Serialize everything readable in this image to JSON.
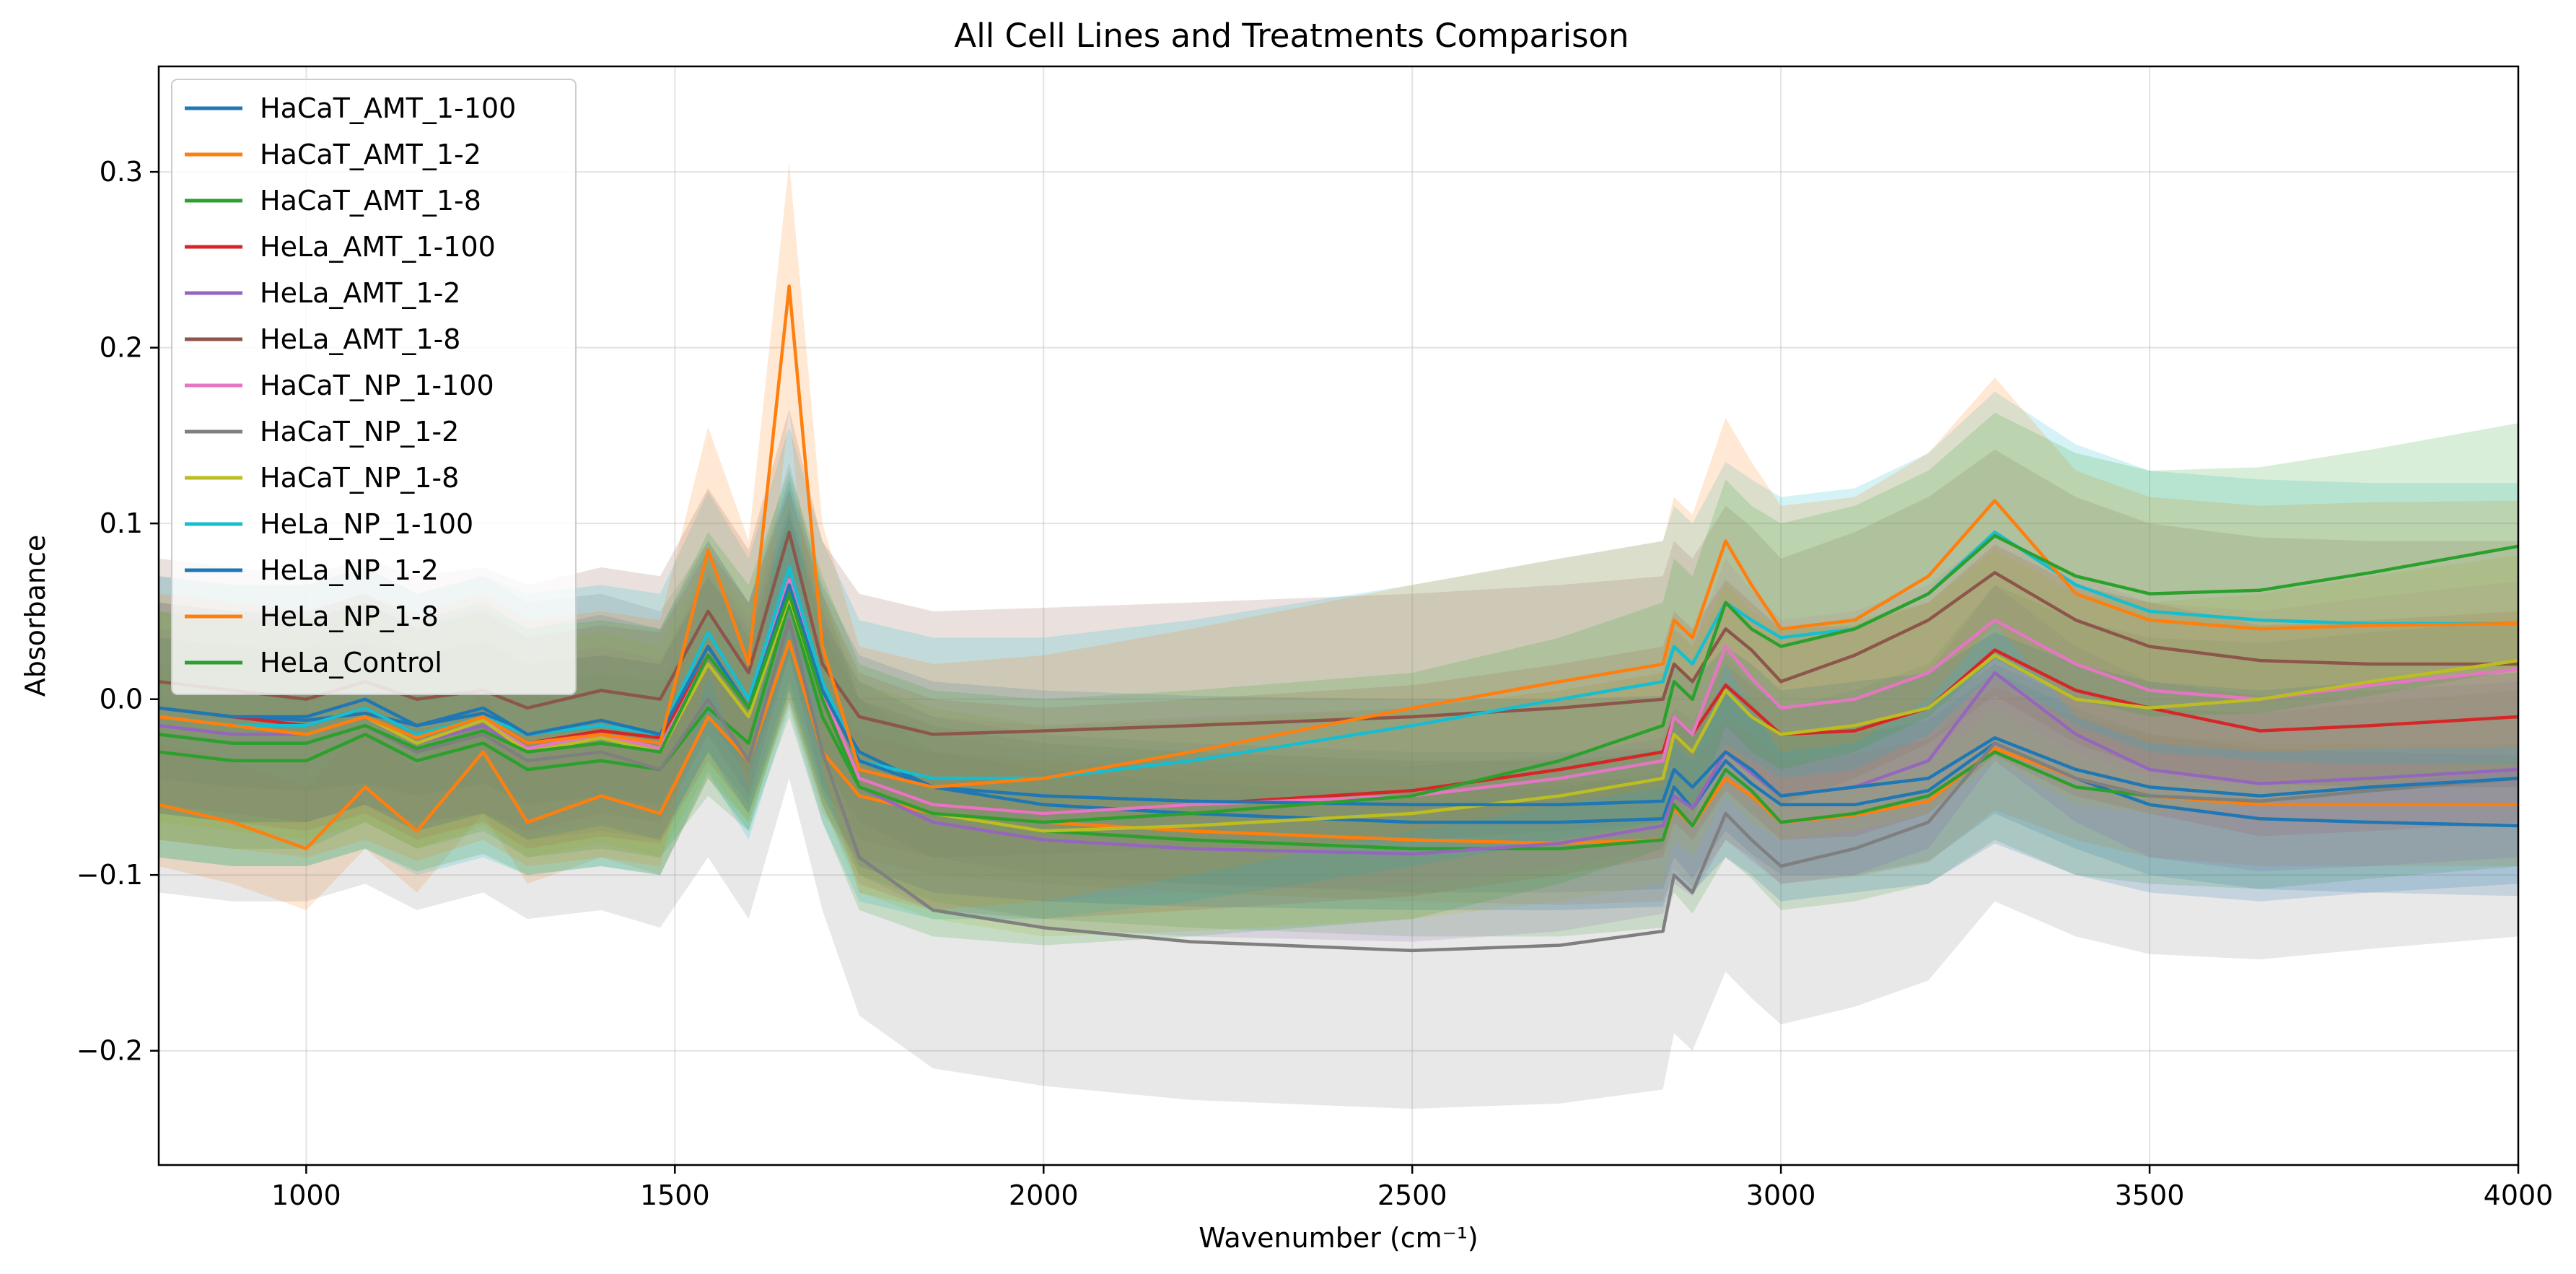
{
  "chart_data": {
    "type": "line",
    "title": "All Cell Lines and Treatments Comparison",
    "xlabel": "Wavenumber (cm⁻¹)",
    "ylabel": "Absorbance",
    "xlim": [
      800,
      4000
    ],
    "ylim": [
      -0.265,
      0.36
    ],
    "xticks": [
      1000,
      1500,
      2000,
      2500,
      3000,
      3500,
      4000
    ],
    "yticks": [
      -0.2,
      -0.1,
      0.0,
      0.1,
      0.2,
      0.3
    ],
    "ytick_labels": [
      "−0.2",
      "−0.1",
      "0.0",
      "0.1",
      "0.2",
      "0.3"
    ],
    "grid": true,
    "legend_position": "top-left",
    "bands": "shaded ±spread around each series",
    "x": [
      800,
      900,
      1000,
      1080,
      1150,
      1240,
      1300,
      1400,
      1480,
      1545,
      1600,
      1655,
      1700,
      1750,
      1850,
      2000,
      2200,
      2500,
      2700,
      2840,
      2855,
      2880,
      2925,
      2960,
      3000,
      3100,
      3200,
      3290,
      3400,
      3500,
      3650,
      3800,
      4000
    ],
    "series": [
      {
        "name": "HaCaT_AMT_1-100",
        "color": "#1f77b4",
        "band": 0.04,
        "values": [
          -0.005,
          -0.01,
          -0.012,
          -0.008,
          -0.015,
          -0.008,
          -0.02,
          -0.015,
          -0.02,
          0.03,
          -0.005,
          0.065,
          0.005,
          -0.03,
          -0.05,
          -0.06,
          -0.065,
          -0.07,
          -0.07,
          -0.068,
          -0.05,
          -0.062,
          -0.035,
          -0.048,
          -0.06,
          -0.06,
          -0.052,
          -0.025,
          -0.045,
          -0.06,
          -0.068,
          -0.07,
          -0.072
        ]
      },
      {
        "name": "HaCaT_AMT_1-2",
        "color": "#ff7f0e",
        "band": 0.035,
        "values": [
          -0.06,
          -0.07,
          -0.085,
          -0.05,
          -0.075,
          -0.03,
          -0.07,
          -0.055,
          -0.065,
          -0.01,
          -0.035,
          0.033,
          -0.03,
          -0.055,
          -0.065,
          -0.07,
          -0.075,
          -0.08,
          -0.082,
          -0.08,
          -0.062,
          -0.072,
          -0.045,
          -0.055,
          -0.07,
          -0.066,
          -0.058,
          -0.028,
          -0.045,
          -0.055,
          -0.06,
          -0.06,
          -0.06
        ]
      },
      {
        "name": "HaCaT_AMT_1-8",
        "color": "#2ca02c",
        "band": 0.05,
        "values": [
          -0.03,
          -0.035,
          -0.035,
          -0.02,
          -0.035,
          -0.025,
          -0.04,
          -0.035,
          -0.04,
          -0.005,
          -0.025,
          0.055,
          -0.01,
          -0.05,
          -0.065,
          -0.075,
          -0.08,
          -0.085,
          -0.085,
          -0.08,
          -0.06,
          -0.072,
          -0.04,
          -0.052,
          -0.07,
          -0.065,
          -0.055,
          -0.03,
          -0.05,
          -0.055,
          -0.058,
          -0.052,
          -0.045
        ]
      },
      {
        "name": "HeLa_AMT_1-100",
        "color": "#d62728",
        "band": 0.06,
        "values": [
          -0.005,
          -0.01,
          -0.015,
          -0.005,
          -0.02,
          -0.01,
          -0.025,
          -0.018,
          -0.022,
          0.025,
          -0.005,
          0.06,
          0.0,
          -0.045,
          -0.06,
          -0.065,
          -0.06,
          -0.052,
          -0.04,
          -0.03,
          -0.01,
          -0.02,
          0.008,
          -0.005,
          -0.02,
          -0.018,
          -0.005,
          0.028,
          0.005,
          -0.005,
          -0.018,
          -0.015,
          -0.01
        ]
      },
      {
        "name": "HeLa_AMT_1-2",
        "color": "#9467bd",
        "band": 0.05,
        "values": [
          -0.015,
          -0.02,
          -0.02,
          -0.01,
          -0.025,
          -0.015,
          -0.03,
          -0.025,
          -0.03,
          0.02,
          -0.01,
          0.06,
          0.0,
          -0.05,
          -0.07,
          -0.08,
          -0.085,
          -0.088,
          -0.082,
          -0.072,
          -0.055,
          -0.062,
          -0.03,
          -0.042,
          -0.055,
          -0.05,
          -0.035,
          0.015,
          -0.02,
          -0.04,
          -0.048,
          -0.045,
          -0.04
        ]
      },
      {
        "name": "HeLa_AMT_1-8",
        "color": "#8c564b",
        "band": 0.07,
        "values": [
          0.01,
          0.005,
          0.0,
          0.01,
          0.0,
          0.005,
          -0.005,
          0.005,
          0.0,
          0.05,
          0.015,
          0.095,
          0.02,
          -0.01,
          -0.02,
          -0.018,
          -0.015,
          -0.01,
          -0.005,
          0.0,
          0.02,
          0.01,
          0.04,
          0.028,
          0.01,
          0.025,
          0.045,
          0.072,
          0.045,
          0.03,
          0.022,
          0.02,
          0.02
        ]
      },
      {
        "name": "HaCaT_NP_1-100",
        "color": "#e377c2",
        "band": 0.05,
        "values": [
          -0.01,
          -0.015,
          -0.02,
          -0.01,
          -0.025,
          -0.012,
          -0.028,
          -0.02,
          -0.028,
          0.025,
          -0.005,
          0.068,
          0.005,
          -0.045,
          -0.06,
          -0.065,
          -0.06,
          -0.055,
          -0.045,
          -0.035,
          -0.01,
          -0.02,
          0.03,
          0.012,
          -0.005,
          0.0,
          0.015,
          0.045,
          0.02,
          0.005,
          0.0,
          0.008,
          0.017
        ]
      },
      {
        "name": "HaCaT_NP_1-2",
        "color": "#7f7f7f",
        "band": 0.09,
        "values": [
          -0.02,
          -0.025,
          -0.025,
          -0.015,
          -0.03,
          -0.02,
          -0.035,
          -0.03,
          -0.04,
          0.0,
          -0.035,
          0.045,
          -0.03,
          -0.09,
          -0.12,
          -0.13,
          -0.138,
          -0.143,
          -0.14,
          -0.132,
          -0.1,
          -0.11,
          -0.065,
          -0.08,
          -0.095,
          -0.085,
          -0.07,
          -0.025,
          -0.045,
          -0.055,
          -0.058,
          -0.052,
          -0.045
        ]
      },
      {
        "name": "HaCaT_NP_1-8",
        "color": "#bcbd22",
        "band": 0.06,
        "values": [
          -0.01,
          -0.015,
          -0.02,
          -0.01,
          -0.025,
          -0.012,
          -0.03,
          -0.022,
          -0.03,
          0.02,
          -0.01,
          0.058,
          0.0,
          -0.05,
          -0.065,
          -0.075,
          -0.072,
          -0.065,
          -0.055,
          -0.045,
          -0.02,
          -0.03,
          0.005,
          -0.01,
          -0.02,
          -0.015,
          -0.005,
          0.025,
          0.0,
          -0.005,
          0.0,
          0.01,
          0.022
        ]
      },
      {
        "name": "HeLa_NP_1-100",
        "color": "#17becf",
        "band": 0.08,
        "values": [
          -0.01,
          -0.015,
          -0.015,
          -0.005,
          -0.02,
          -0.01,
          -0.02,
          -0.015,
          -0.02,
          0.038,
          0.0,
          0.075,
          0.01,
          -0.035,
          -0.045,
          -0.045,
          -0.035,
          -0.015,
          0.0,
          0.01,
          0.03,
          0.02,
          0.055,
          0.045,
          0.035,
          0.04,
          0.06,
          0.095,
          0.065,
          0.05,
          0.045,
          0.043,
          0.043
        ]
      },
      {
        "name": "HeLa_NP_1-2",
        "color": "#1f77b4",
        "band": 0.06,
        "values": [
          -0.005,
          -0.01,
          -0.01,
          0.0,
          -0.015,
          -0.005,
          -0.02,
          -0.012,
          -0.02,
          0.03,
          -0.005,
          0.065,
          0.005,
          -0.035,
          -0.05,
          -0.055,
          -0.058,
          -0.06,
          -0.06,
          -0.058,
          -0.04,
          -0.05,
          -0.03,
          -0.04,
          -0.055,
          -0.05,
          -0.045,
          -0.022,
          -0.04,
          -0.05,
          -0.055,
          -0.05,
          -0.045
        ]
      },
      {
        "name": "HeLa_NP_1-8",
        "color": "#ff7f0e",
        "band": 0.07,
        "values": [
          -0.01,
          -0.015,
          -0.02,
          -0.01,
          -0.022,
          -0.01,
          -0.025,
          -0.02,
          -0.025,
          0.085,
          0.02,
          0.235,
          0.03,
          -0.04,
          -0.05,
          -0.045,
          -0.03,
          -0.005,
          0.01,
          0.02,
          0.045,
          0.035,
          0.09,
          0.065,
          0.04,
          0.045,
          0.07,
          0.113,
          0.06,
          0.045,
          0.04,
          0.042,
          0.043
        ]
      },
      {
        "name": "HeLa_Control",
        "color": "#2ca02c",
        "band": 0.07,
        "values": [
          -0.02,
          -0.025,
          -0.025,
          -0.015,
          -0.028,
          -0.018,
          -0.03,
          -0.025,
          -0.03,
          0.025,
          -0.005,
          0.06,
          0.0,
          -0.05,
          -0.065,
          -0.07,
          -0.065,
          -0.055,
          -0.035,
          -0.015,
          0.01,
          0.0,
          0.055,
          0.04,
          0.03,
          0.04,
          0.06,
          0.093,
          0.07,
          0.06,
          0.062,
          0.072,
          0.087
        ]
      }
    ]
  }
}
